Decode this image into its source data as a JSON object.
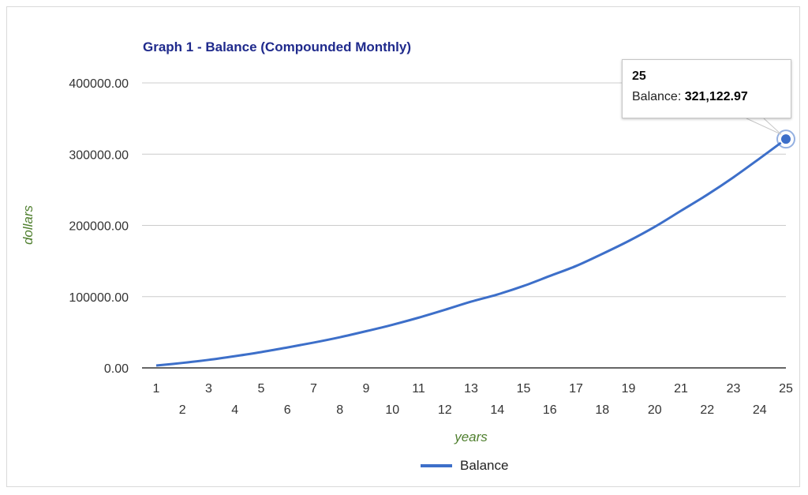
{
  "chart_data": {
    "type": "line",
    "title": "Graph 1 - Balance (Compounded Monthly)",
    "xlabel": "years",
    "ylabel": "dollars",
    "x": [
      1,
      2,
      3,
      4,
      5,
      6,
      7,
      8,
      9,
      10,
      11,
      12,
      13,
      14,
      15,
      16,
      17,
      18,
      19,
      20,
      21,
      22,
      23,
      24,
      25
    ],
    "series": [
      {
        "name": "Balance",
        "color": "#3d6fc9",
        "values": [
          3300,
          7000,
          11300,
          16500,
          22200,
          28700,
          35500,
          43000,
          51500,
          60500,
          70500,
          81500,
          93000,
          103000,
          115000,
          129000,
          143000,
          160000,
          178000,
          198000,
          220500,
          243000,
          267500,
          294000,
          321122.97
        ]
      }
    ],
    "ylim": [
      0,
      400000
    ],
    "yticks": [
      "0.00",
      "100000.00",
      "200000.00",
      "300000.00",
      "400000.00"
    ],
    "xticks": [
      "1",
      "2",
      "3",
      "4",
      "5",
      "6",
      "7",
      "8",
      "9",
      "10",
      "11",
      "12",
      "13",
      "14",
      "15",
      "16",
      "17",
      "18",
      "19",
      "20",
      "21",
      "22",
      "23",
      "24",
      "25"
    ],
    "grid": true,
    "legend": "bottom"
  },
  "tooltip": {
    "title": "25",
    "label": "Balance:",
    "value": "321,122.97"
  }
}
